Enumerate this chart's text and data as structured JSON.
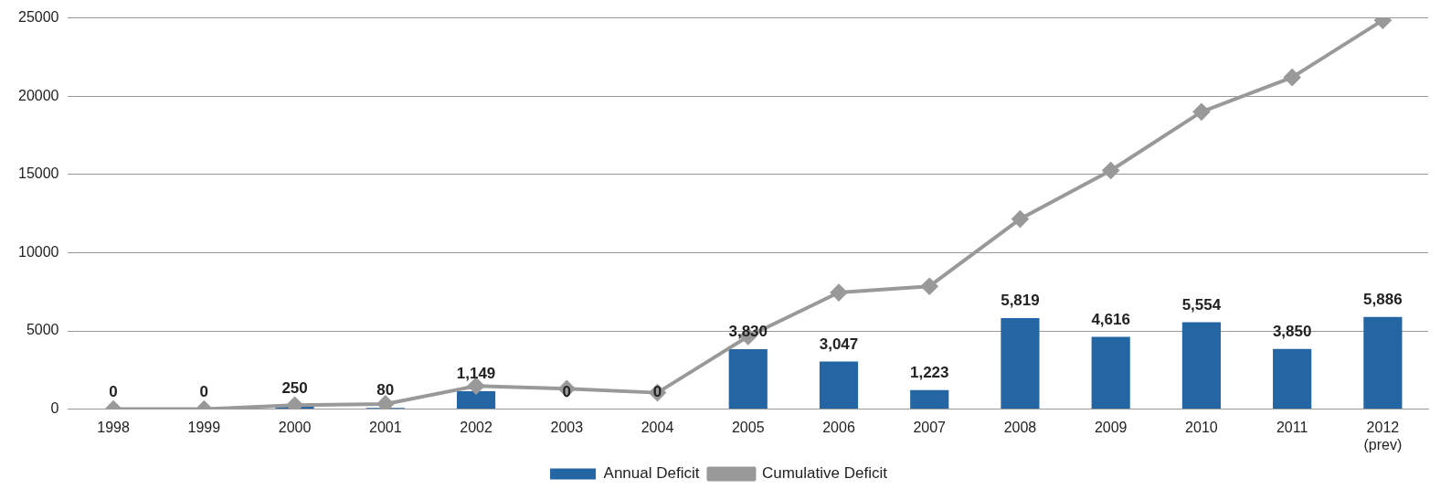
{
  "chart_data": {
    "type": "bar",
    "categories": [
      "1998",
      "1999",
      "2000",
      "2001",
      "2002",
      "2003",
      "2004",
      "2005",
      "2006",
      "2007",
      "2008",
      "2009",
      "2010",
      "2011",
      "2012\n(prev)"
    ],
    "series": [
      {
        "name": "Annual Deficit",
        "color": "#2465a3",
        "values": [
          0,
          0,
          250,
          80,
          1149,
          0,
          0,
          3830,
          3047,
          1223,
          5819,
          4616,
          5554,
          3850,
          5886
        ],
        "value_labels": [
          "0",
          "0",
          "250",
          "80",
          "1,149",
          "0",
          "0",
          "3,830",
          "3,047",
          "1,223",
          "5,819",
          "4,616",
          "5,554",
          "3,850",
          "5,886"
        ]
      },
      {
        "name": "Cumulative Deficit",
        "type": "line",
        "color": "#999999",
        "marker": "diamond",
        "values": [
          0,
          0,
          250,
          330,
          1480,
          1300,
          1050,
          4650,
          7450,
          7850,
          12150,
          15250,
          19000,
          21200,
          24850
        ]
      }
    ],
    "ylim": [
      0,
      25000
    ],
    "yticks": [
      0,
      5000,
      10000,
      15000,
      20000,
      25000
    ],
    "grid": "y",
    "legend": "bottom"
  }
}
